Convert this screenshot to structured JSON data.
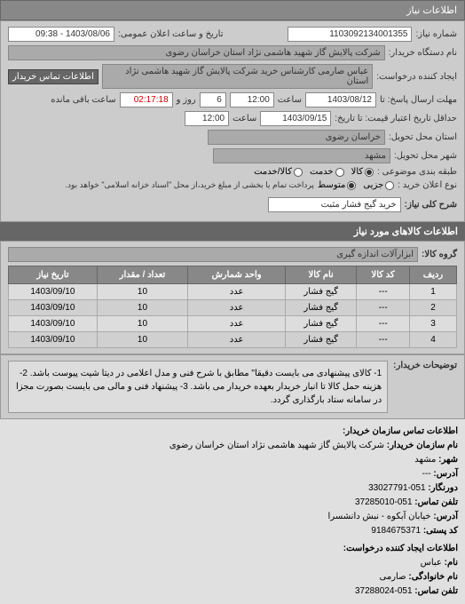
{
  "header": {
    "title": "اطلاعات نیاز"
  },
  "top": {
    "request_no_label": "شماره نیاز:",
    "request_no": "1103092134001355",
    "datetime_label": "تاریخ و ساعت اعلان عمومی:",
    "datetime": "1403/08/06 - 09:38",
    "buyer_label": "نام دستگاه خریدار:",
    "buyer": "شرکت پالایش گاز شهید هاشمی نژاد   استان خراسان رضوی",
    "creator_label": "ایجاد کننده درخواست:",
    "creator": "عباس صارمی کارشناس خرید  شرکت پالایش گاز شهید هاشمی نژاد   استان",
    "contact_btn": "اطلاعات تماس خریدار",
    "deadline_label": "مهلت ارسال پاسخ: تا",
    "deadline_date": "1403/08/12",
    "deadline_time_label": "ساعت",
    "deadline_time": "12:00",
    "remain_days": "6",
    "remain_days_label": "روز و",
    "remain_time": "02:17:18",
    "remain_label": "ساعت باقی مانده",
    "validity_label": "حداقل تاریخ اعتبار قیمت: تا تاریخ:",
    "validity_date": "1403/09/15",
    "validity_time_label": "ساعت",
    "validity_time": "12:00",
    "province_label": "استان محل تحویل:",
    "province": "خراسان رضوی",
    "city_label": "شهر محل تحویل:",
    "city": "مشهد",
    "category_label": "طبقه بندی موضوعی :",
    "cat_goods": "کالا",
    "cat_service": "خدمت",
    "cat_both": "کالا/خدمت",
    "purchase_label": "نوع اعلان خرید :",
    "p_small": "جزیی",
    "p_medium": "متوسط",
    "p_note": "پرداخت تمام یا بخشی از مبلغ خرید،از محل \"اسناد خزانه اسلامی\" خواهد بود.",
    "main_label": "شرح کلی نیاز:",
    "main_desc": "خرید گیج فشار مثبت"
  },
  "goods_header": "اطلاعات کالاهای مورد نیاز",
  "group_label": "گروه کالا:",
  "group_value": "ابزارآلات اندازه گیری",
  "table": {
    "columns": [
      "ردیف",
      "کد کالا",
      "نام کالا",
      "واحد شمارش",
      "تعداد / مقدار",
      "تاریخ نیاز"
    ],
    "rows": [
      [
        "1",
        "---",
        "گیج فشار",
        "عدد",
        "10",
        "1403/09/10"
      ],
      [
        "2",
        "---",
        "گیج فشار",
        "عدد",
        "10",
        "1403/09/10"
      ],
      [
        "3",
        "---",
        "گیج فشار",
        "عدد",
        "10",
        "1403/09/10"
      ],
      [
        "4",
        "---",
        "گیج فشار",
        "عدد",
        "10",
        "1403/09/10"
      ]
    ]
  },
  "desc": {
    "label": "توضیحات خریدار:",
    "text": "1- کالای پیشنهادی می بایست دقیقا\" مطابق با شرح فنی و مدل اعلامی در دیتا شیت پیوست باشد. 2- هزینه حمل کالا تا انبار خریدار بعهده خریدار می باشد. 3- پیشنهاد فنی و مالی می بایست بصورت مجزا در سامانه ستاد بارگذاری گردد."
  },
  "contact": {
    "header": "اطلاعات تماس سازمان خریدار:",
    "org_label": "نام سازمان خریدار:",
    "org": "شرکت پالایش گاز شهید هاشمی نژاد استان خراسان رضوی",
    "city_label": "شهر:",
    "city": "مشهد",
    "addr_label": "آدرس:",
    "addr": "---",
    "postal_label": "دورنگار:",
    "postal": "051-33027791",
    "phone_label": "تلفن تماس:",
    "phone": "051-37285010",
    "addr2_label": "آدرس:",
    "addr2": "خیابان آبکوه - نبش دانشسرا",
    "code_label": "کد پستی:",
    "code": "9184675371",
    "creator_header": "اطلاعات ایجاد کننده درخواست:",
    "name_label": "نام:",
    "name": "عباس",
    "lname_label": "نام خانوادگی:",
    "lname": "صارمی",
    "tel_label": "تلفن تماس:",
    "tel": "051-37288024"
  }
}
